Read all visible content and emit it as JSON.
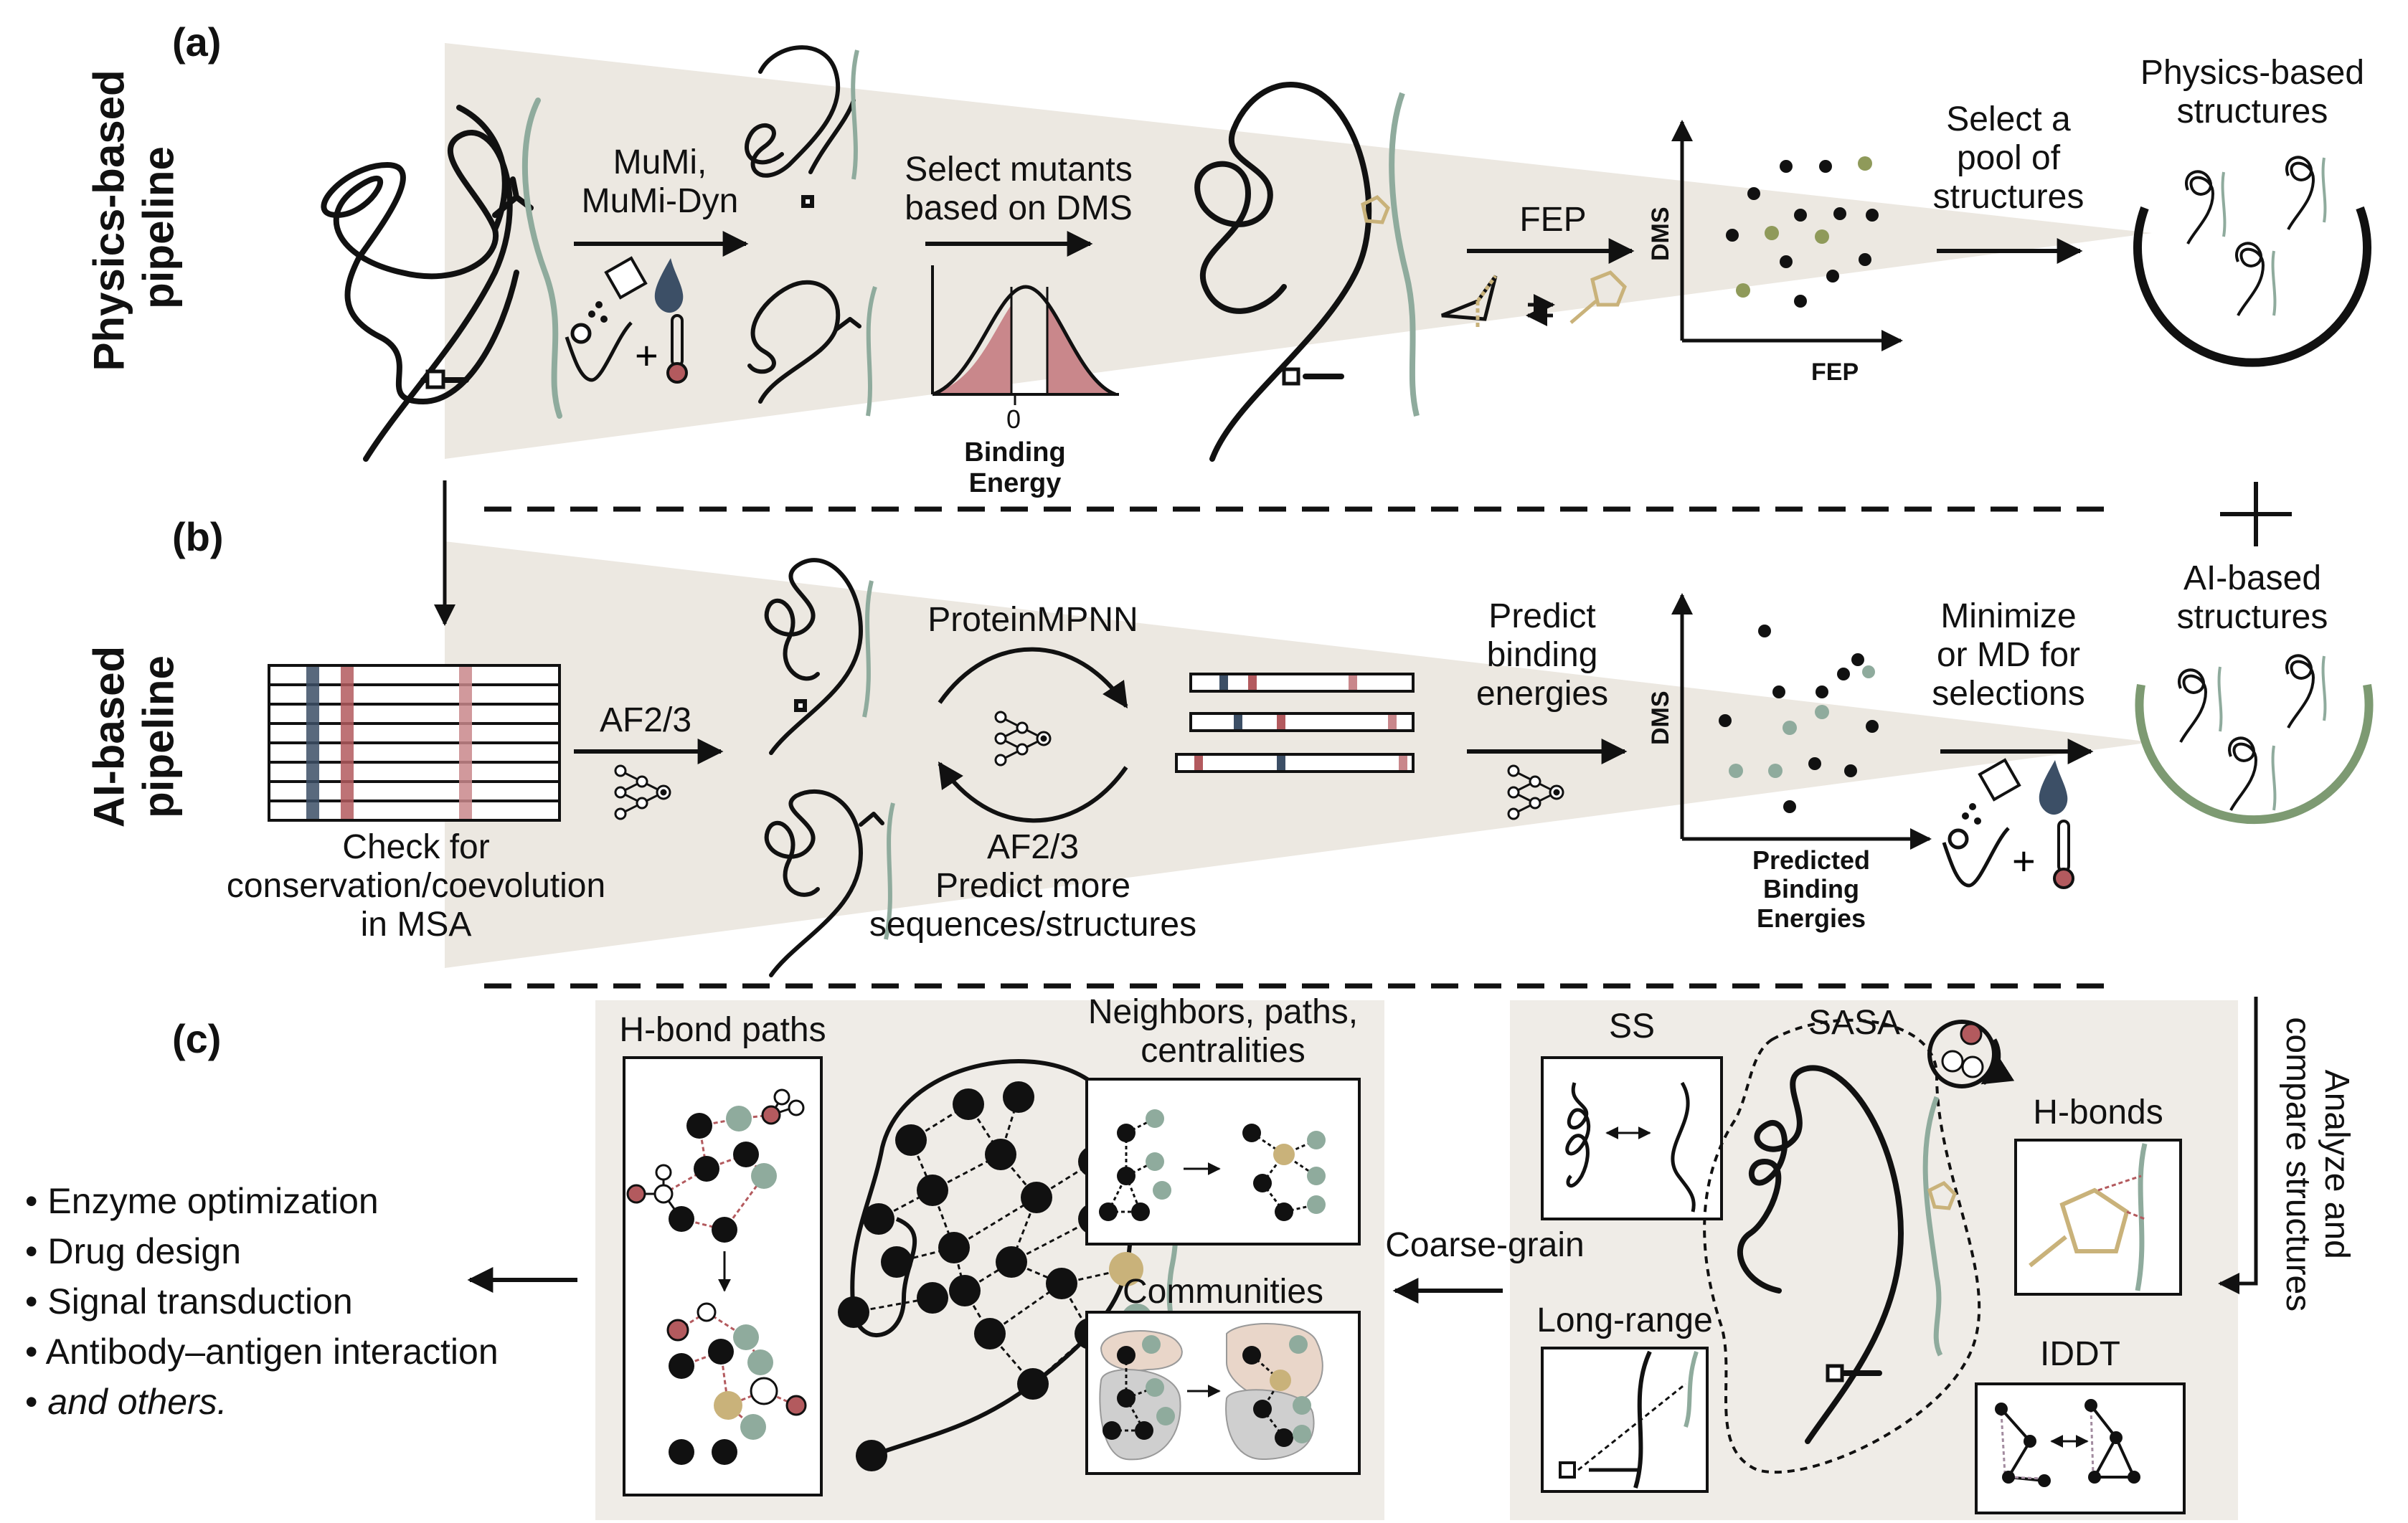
{
  "panels": {
    "a": "(a)",
    "b": "(b)",
    "c": "(c)"
  },
  "side_labels": {
    "physics_line1": "Physics-based",
    "physics_line2": "pipeline",
    "ai_line1": "AI-based",
    "ai_line2": "pipeline"
  },
  "row_a": {
    "mumi_line1": "MuMi,",
    "mumi_line2": "MuMi-Dyn",
    "select_line1": "Select mutants",
    "select_line2": "based on DMS",
    "zero": "0",
    "binding_line1": "Binding",
    "binding_line2": "Energy",
    "fep_arrow": "FEP",
    "dms_axis": "DMS",
    "fep_axis": "FEP",
    "pool_line1": "Select a",
    "pool_line2": "pool of",
    "pool_line3": "structures",
    "result_line1": "Physics-based",
    "result_line2": "structures"
  },
  "row_b": {
    "af_arrow": "AF2/3",
    "check_line1": "Check for",
    "check_line2": "conservation/coevolution",
    "check_line3": "in MSA",
    "proteinmpnn": "ProteinMPNN",
    "af_loop": "AF2/3",
    "predict_more_line1": "Predict more",
    "predict_more_line2": "sequences/structures",
    "predict_line1": "Predict",
    "predict_line2": "binding",
    "predict_line3": "energies",
    "dms_axis": "DMS",
    "pbe_line1": "Predicted",
    "pbe_line2": "Binding",
    "pbe_line3": "Energies",
    "min_line1": "Minimize",
    "min_line2": "or MD for",
    "min_line3": "selections",
    "result_line1": "AI-based",
    "result_line2": "structures"
  },
  "row_c": {
    "analyze_line1": "Analyze and",
    "analyze_line2": "compare structures",
    "ss": "SS",
    "sasa": "SASA",
    "hbonds": "H-bonds",
    "longrange": "Long-range",
    "iddt": "IDDT",
    "coarse": "Coarse-grain",
    "hbond_paths": "H-bond paths",
    "neighbors_line1": "Neighbors, paths,",
    "neighbors_line2": "centralities",
    "communities": "Communities",
    "applications": [
      "Enzyme optimization",
      "Drug design",
      "Signal transduction",
      "Antibody–antigen interaction",
      "and others."
    ]
  },
  "colors": {
    "cone": "#ece8e1",
    "panel_bg": "#efece7",
    "teal": "#8fab9d",
    "gold": "#c9b27a",
    "red": "#b35a5e",
    "pink": "#c9878b",
    "navy": "#3c4f66",
    "olive": "#8f9a5a",
    "green_arc": "#7d9a72"
  }
}
